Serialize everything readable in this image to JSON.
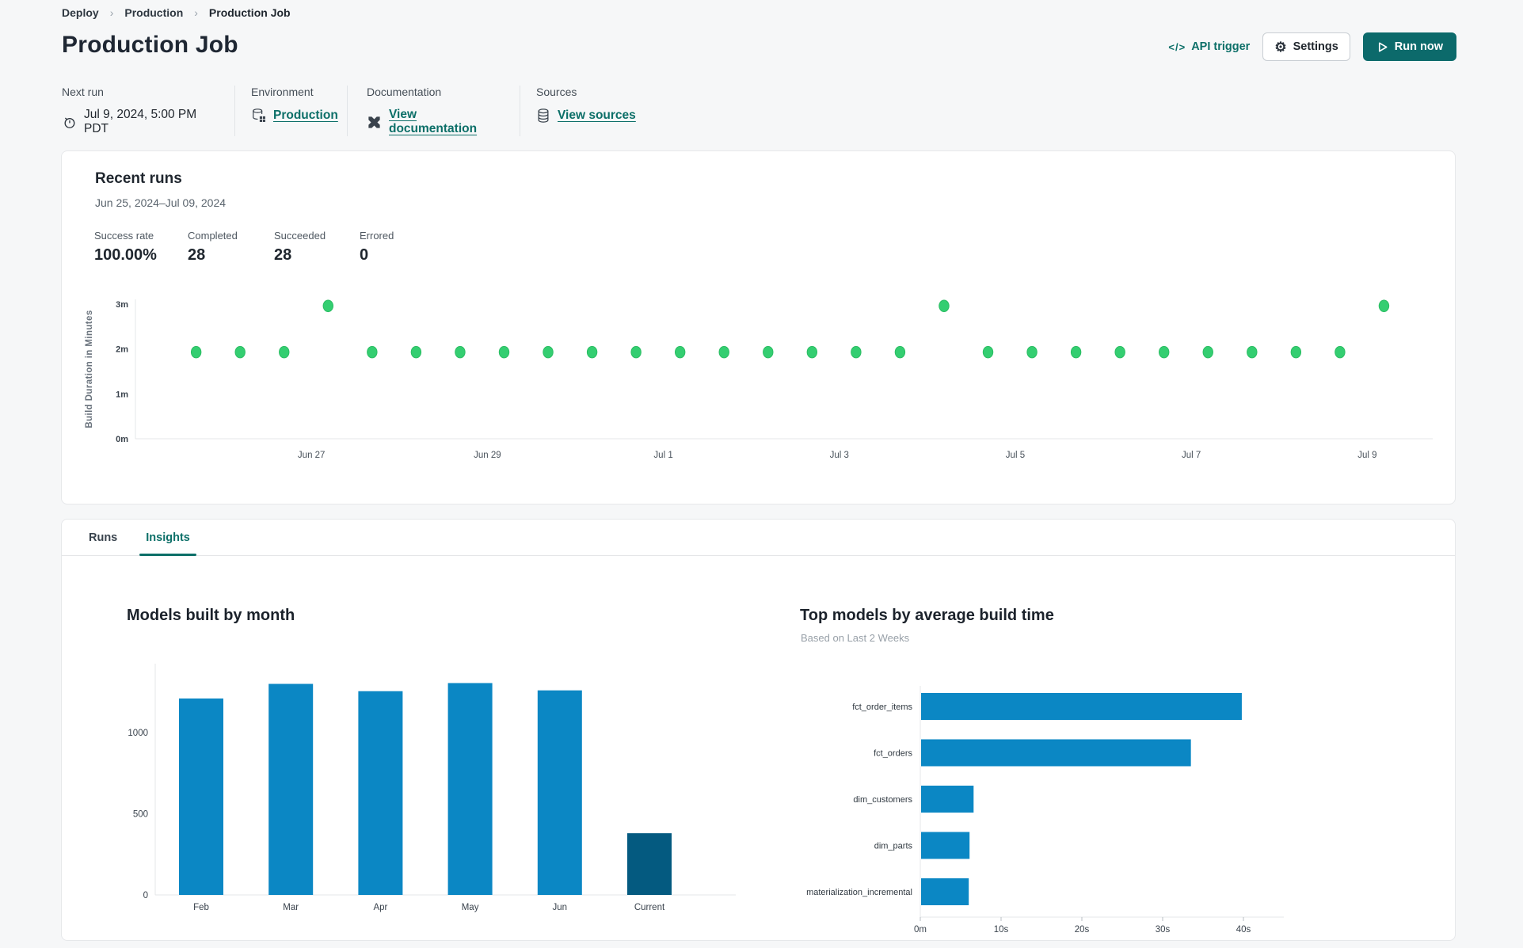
{
  "breadcrumb": [
    "Deploy",
    "Production",
    "Production Job"
  ],
  "header": {
    "title": "Production Job",
    "api_trigger_label": "API trigger",
    "api_trigger_glyph": "</>",
    "settings_label": "Settings",
    "run_now_label": "Run now"
  },
  "info": {
    "columns": [
      {
        "label": "Next run",
        "value": "Jul 9, 2024, 5:00 PM PDT",
        "icon": "clock-icon",
        "is_link": false
      },
      {
        "label": "Environment",
        "value": "Production",
        "icon": "database-grid-icon",
        "is_link": true
      },
      {
        "label": "Documentation",
        "value": "View documentation",
        "icon": "dbt-logo-icon",
        "is_link": true
      },
      {
        "label": "Sources",
        "value": "View sources",
        "icon": "database-stack-icon",
        "is_link": true
      }
    ]
  },
  "recent_runs": {
    "title": "Recent runs",
    "date_range": "Jun 25, 2024–Jul 09, 2024",
    "stats": [
      {
        "label": "Success rate",
        "value": "100.00%"
      },
      {
        "label": "Completed",
        "value": "28"
      },
      {
        "label": "Succeeded",
        "value": "28"
      },
      {
        "label": "Errored",
        "value": "0"
      }
    ]
  },
  "tabs": [
    {
      "label": "Runs",
      "active": false
    },
    {
      "label": "Insights",
      "active": true
    }
  ],
  "colors": {
    "teal_accent": "#0c6f68",
    "run_now_bg": "#0c6a6b",
    "success_green": "#34ce71",
    "bar_blue": "#0b87c4",
    "bar_dark_blue": "#045a80",
    "axis_gray": "#e4e7e9"
  },
  "chart_data": [
    {
      "type": "scatter",
      "title": "",
      "ylabel": "Build Duration in Minutes",
      "x_ref": "days since Jun 25, 2024",
      "xlim": [
        0,
        14.6
      ],
      "ylim": [
        0,
        3.3
      ],
      "point_color": "#34ce71",
      "y_ticks": [
        {
          "v": 0,
          "label": "0m"
        },
        {
          "v": 1,
          "label": "1m"
        },
        {
          "v": 2,
          "label": "2m"
        },
        {
          "v": 3,
          "label": "3m"
        }
      ],
      "x_ticks": [
        {
          "t": 2,
          "label": "Jun 27"
        },
        {
          "t": 4,
          "label": "Jun 29"
        },
        {
          "t": 6,
          "label": "Jul 1"
        },
        {
          "t": 8,
          "label": "Jul 3"
        },
        {
          "t": 10,
          "label": "Jul 5"
        },
        {
          "t": 12,
          "label": "Jul 7"
        },
        {
          "t": 14,
          "label": "Jul 9"
        }
      ],
      "points": [
        {
          "t": 0.69,
          "m": 1.93
        },
        {
          "t": 1.19,
          "m": 1.93
        },
        {
          "t": 1.69,
          "m": 1.93
        },
        {
          "t": 2.19,
          "m": 2.96
        },
        {
          "t": 2.69,
          "m": 1.93
        },
        {
          "t": 3.19,
          "m": 1.93
        },
        {
          "t": 3.69,
          "m": 1.93
        },
        {
          "t": 4.19,
          "m": 1.93
        },
        {
          "t": 4.69,
          "m": 1.93
        },
        {
          "t": 5.19,
          "m": 1.93
        },
        {
          "t": 5.69,
          "m": 1.93
        },
        {
          "t": 6.19,
          "m": 1.93
        },
        {
          "t": 6.69,
          "m": 1.93
        },
        {
          "t": 7.19,
          "m": 1.93
        },
        {
          "t": 7.69,
          "m": 1.93
        },
        {
          "t": 8.19,
          "m": 1.93
        },
        {
          "t": 8.69,
          "m": 1.93
        },
        {
          "t": 9.19,
          "m": 2.96
        },
        {
          "t": 9.69,
          "m": 1.93
        },
        {
          "t": 10.19,
          "m": 1.93
        },
        {
          "t": 10.69,
          "m": 1.93
        },
        {
          "t": 11.19,
          "m": 1.93
        },
        {
          "t": 11.69,
          "m": 1.93
        },
        {
          "t": 12.19,
          "m": 1.93
        },
        {
          "t": 12.69,
          "m": 1.93
        },
        {
          "t": 13.19,
          "m": 1.93
        },
        {
          "t": 13.69,
          "m": 1.93
        },
        {
          "t": 14.19,
          "m": 2.96
        }
      ]
    },
    {
      "type": "bar",
      "title": "Models built by month",
      "categories": [
        "Feb",
        "Mar",
        "Apr",
        "May",
        "Jun",
        "Current"
      ],
      "values": [
        1210,
        1300,
        1255,
        1305,
        1260,
        380
      ],
      "y_ticks": [
        0,
        500,
        1000
      ],
      "ylim": [
        0,
        1425
      ],
      "bar_color": "#0b87c4",
      "highlight": {
        "index": 5,
        "color": "#045a80"
      }
    },
    {
      "type": "bar",
      "orientation": "horizontal",
      "title": "Top models by average build time",
      "subtitle": "Based on Last 2 Weeks",
      "categories": [
        "fct_order_items",
        "fct_orders",
        "dim_customers",
        "dim_parts",
        "materialization_incremental"
      ],
      "values": [
        39.7,
        33.4,
        6.5,
        6.0,
        5.9
      ],
      "xlim": [
        0,
        45
      ],
      "bar_color": "#0b87c4",
      "x_ticks": [
        {
          "v": 0,
          "label": "0m"
        },
        {
          "v": 10,
          "label": "10s"
        },
        {
          "v": 20,
          "label": "20s"
        },
        {
          "v": 30,
          "label": "30s"
        },
        {
          "v": 40,
          "label": "40s"
        }
      ]
    }
  ]
}
